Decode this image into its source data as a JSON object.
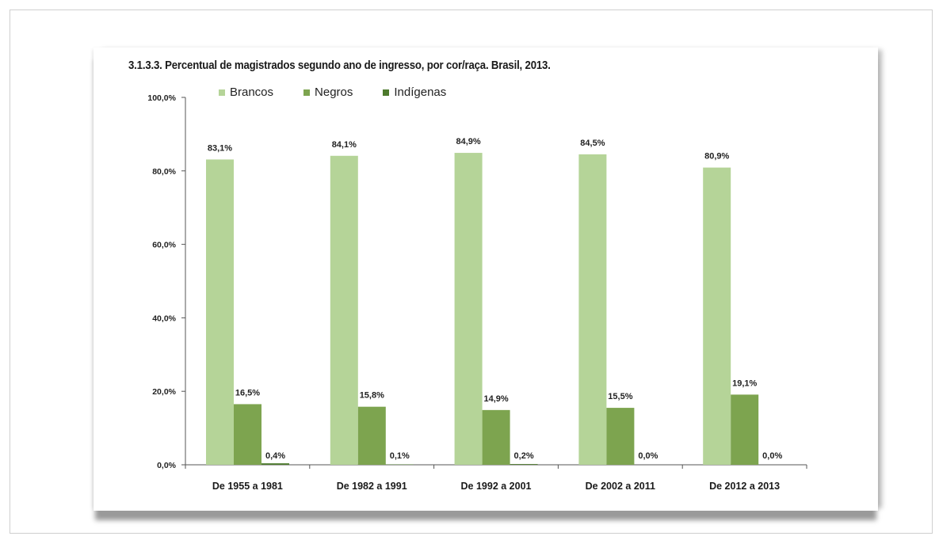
{
  "colors": {
    "brancos": "#b5d498",
    "negros": "#7da44f",
    "indigenas": "#4d7a2d",
    "axis": "#555555"
  },
  "chart_data": {
    "type": "bar",
    "title": "3.1.3.3. Percentual de magistrados segundo ano de ingresso, por cor/raça. Brasil, 2013.",
    "xlabel": "",
    "ylabel": "",
    "ylim": [
      0,
      100
    ],
    "yticks": [
      0,
      20,
      40,
      60,
      80,
      100
    ],
    "ytick_labels": [
      "0,0%",
      "20,0%",
      "40,0%",
      "60,0%",
      "80,0%",
      "100,0%"
    ],
    "legend_position": "top",
    "grid": false,
    "categories": [
      "De 1955 a 1981",
      "De 1982 a 1991",
      "De 1992 a 2001",
      "De 2002 a 2011",
      "De 2012 a 2013"
    ],
    "series": [
      {
        "name": "Brancos",
        "values": [
          83.1,
          84.1,
          84.9,
          84.5,
          80.9
        ],
        "labels": [
          "83,1%",
          "84,1%",
          "84,9%",
          "84,5%",
          "80,9%"
        ]
      },
      {
        "name": "Negros",
        "values": [
          16.5,
          15.8,
          14.9,
          15.5,
          19.1
        ],
        "labels": [
          "16,5%",
          "15,8%",
          "14,9%",
          "15,5%",
          "19,1%"
        ]
      },
      {
        "name": "Indígenas",
        "values": [
          0.4,
          0.1,
          0.2,
          0.0,
          0.0
        ],
        "labels": [
          "0,4%",
          "0,1%",
          "0,2%",
          "0,0%",
          "0,0%"
        ]
      }
    ]
  }
}
